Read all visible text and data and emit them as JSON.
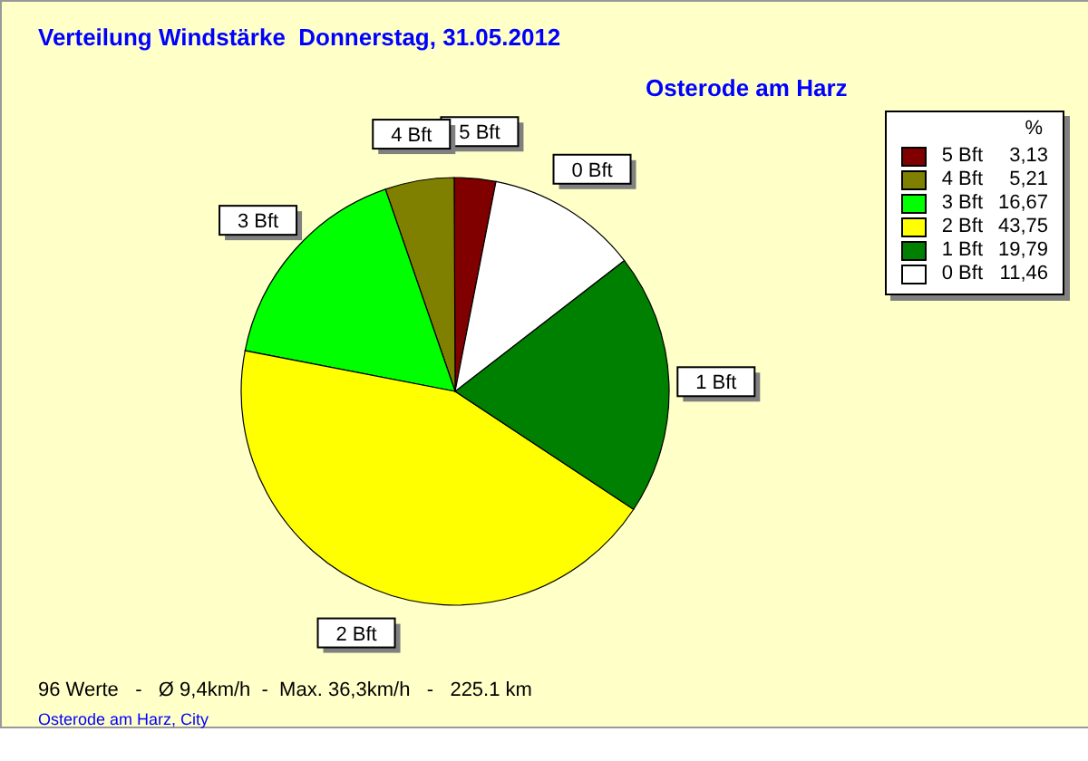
{
  "chart_data": {
    "type": "pie",
    "title": "Verteilung Windstärke  Donnerstag, 31.05.2012",
    "subtitle": "Osterode am Harz",
    "categories": [
      "5 Bft",
      "4 Bft",
      "3 Bft",
      "2 Bft",
      "1 Bft",
      "0 Bft"
    ],
    "values": [
      3.13,
      5.21,
      16.67,
      43.75,
      19.79,
      11.46
    ],
    "value_labels": [
      "3,13",
      "5,21",
      "16,67",
      "43,75",
      "19,79",
      "11,46"
    ],
    "colors": [
      "#800000",
      "#808000",
      "#00ff00",
      "#ffff00",
      "#008000",
      "#ffffff"
    ],
    "legend": "top right",
    "legend_title": "%",
    "annotations": [
      "96 Werte   -   Ø 9,4km/h  -  Max. 36,3km/h   -   225.1 km",
      "Osterode am Harz, City"
    ]
  }
}
